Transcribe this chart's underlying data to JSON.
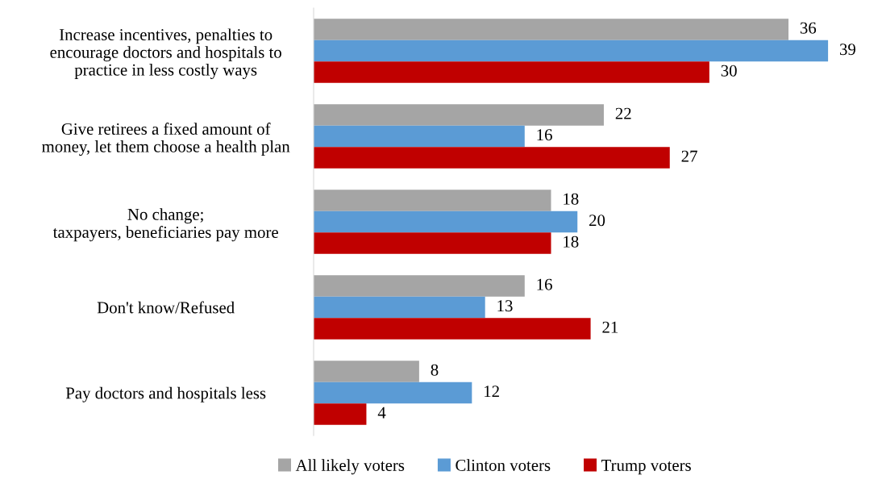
{
  "chart_data": {
    "type": "bar",
    "orientation": "horizontal",
    "categories": [
      "Increase incentives, penalties to\nencourage doctors and hospitals to\npractice in less costly ways",
      "Give retirees a fixed amount of\nmoney, let them choose a health plan",
      "No change;\ntaxpayers, beneficiaries pay more",
      "Don't know/Refused",
      "Pay doctors and hospitals less"
    ],
    "series": [
      {
        "name": "All likely voters",
        "color": "#a5a5a5",
        "values": [
          36,
          22,
          18,
          16,
          8
        ]
      },
      {
        "name": "Clinton voters",
        "color": "#5b9bd5",
        "values": [
          39,
          16,
          20,
          13,
          12
        ]
      },
      {
        "name": "Trump voters",
        "color": "#c00000",
        "values": [
          30,
          27,
          18,
          21,
          4
        ]
      }
    ],
    "tick_labels": "y",
    "data_labels": true,
    "legend": "bottom",
    "grid": false
  }
}
